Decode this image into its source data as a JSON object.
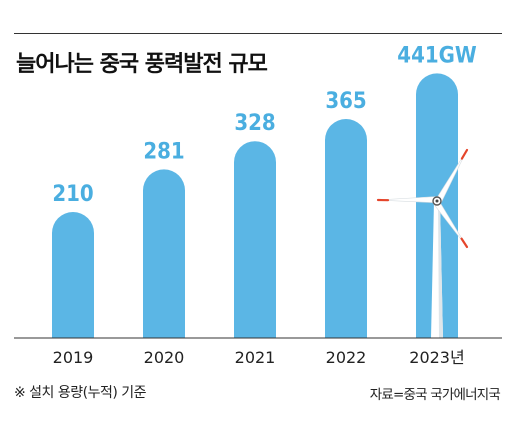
{
  "title": "늘어나는 중국 풍력발전 규모",
  "note": "※ 설치 용량(누적) 기준",
  "source": "자료=중국 국가에너지국",
  "colors": {
    "bar": "#5bb6e5",
    "label": "#4aaee0",
    "blade_tip": "#e5452b",
    "axis": "#333333"
  },
  "chart_data": {
    "type": "bar",
    "title": "늘어나는 중국 풍력발전 규모",
    "categories": [
      "2019",
      "2020",
      "2021",
      "2022",
      "2023년"
    ],
    "values": [
      210,
      281,
      328,
      365,
      441
    ],
    "value_labels": [
      "210",
      "281",
      "328",
      "365",
      "441GW"
    ],
    "unit": "GW",
    "xlabel": "",
    "ylabel": "",
    "grid": false
  }
}
